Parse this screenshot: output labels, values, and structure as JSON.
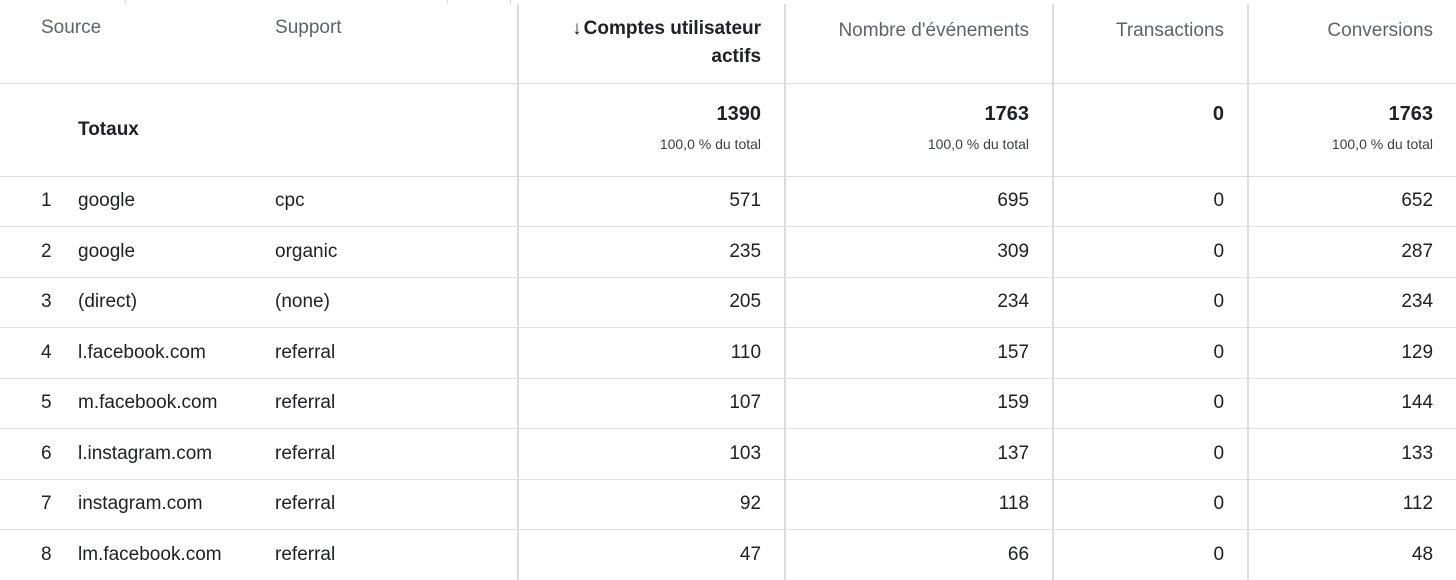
{
  "table": {
    "columns": {
      "source": "Source",
      "support": "Support",
      "users": "Comptes utilisateur actifs",
      "users_sort_arrow": "↓",
      "events": "Nombre d'événements",
      "transactions": "Transactions",
      "conversions": "Conversions"
    },
    "totals": {
      "label": "Totaux",
      "users": "1390",
      "users_pct": "100,0 % du total",
      "events": "1763",
      "events_pct": "100,0 % du total",
      "transactions": "0",
      "conversions": "1763",
      "conversions_pct": "100,0 % du total"
    },
    "rows": [
      {
        "index": "1",
        "source": "google",
        "support": "cpc",
        "users": "571",
        "events": "695",
        "transactions": "0",
        "conversions": "652"
      },
      {
        "index": "2",
        "source": "google",
        "support": "organic",
        "users": "235",
        "events": "309",
        "transactions": "0",
        "conversions": "287"
      },
      {
        "index": "3",
        "source": "(direct)",
        "support": "(none)",
        "users": "205",
        "events": "234",
        "transactions": "0",
        "conversions": "234"
      },
      {
        "index": "4",
        "source": "l.facebook.com",
        "support": "referral",
        "users": "110",
        "events": "157",
        "transactions": "0",
        "conversions": "129"
      },
      {
        "index": "5",
        "source": "m.facebook.com",
        "support": "referral",
        "users": "107",
        "events": "159",
        "transactions": "0",
        "conversions": "144"
      },
      {
        "index": "6",
        "source": "l.instagram.com",
        "support": "referral",
        "users": "103",
        "events": "137",
        "transactions": "0",
        "conversions": "133"
      },
      {
        "index": "7",
        "source": "instagram.com",
        "support": "referral",
        "users": "92",
        "events": "118",
        "transactions": "0",
        "conversions": "112"
      },
      {
        "index": "8",
        "source": "lm.facebook.com",
        "support": "referral",
        "users": "47",
        "events": "66",
        "transactions": "0",
        "conversions": "48"
      }
    ]
  },
  "colors": {
    "text_primary": "#202124",
    "text_secondary": "#5f6368",
    "grid_line": "#dadce0"
  }
}
